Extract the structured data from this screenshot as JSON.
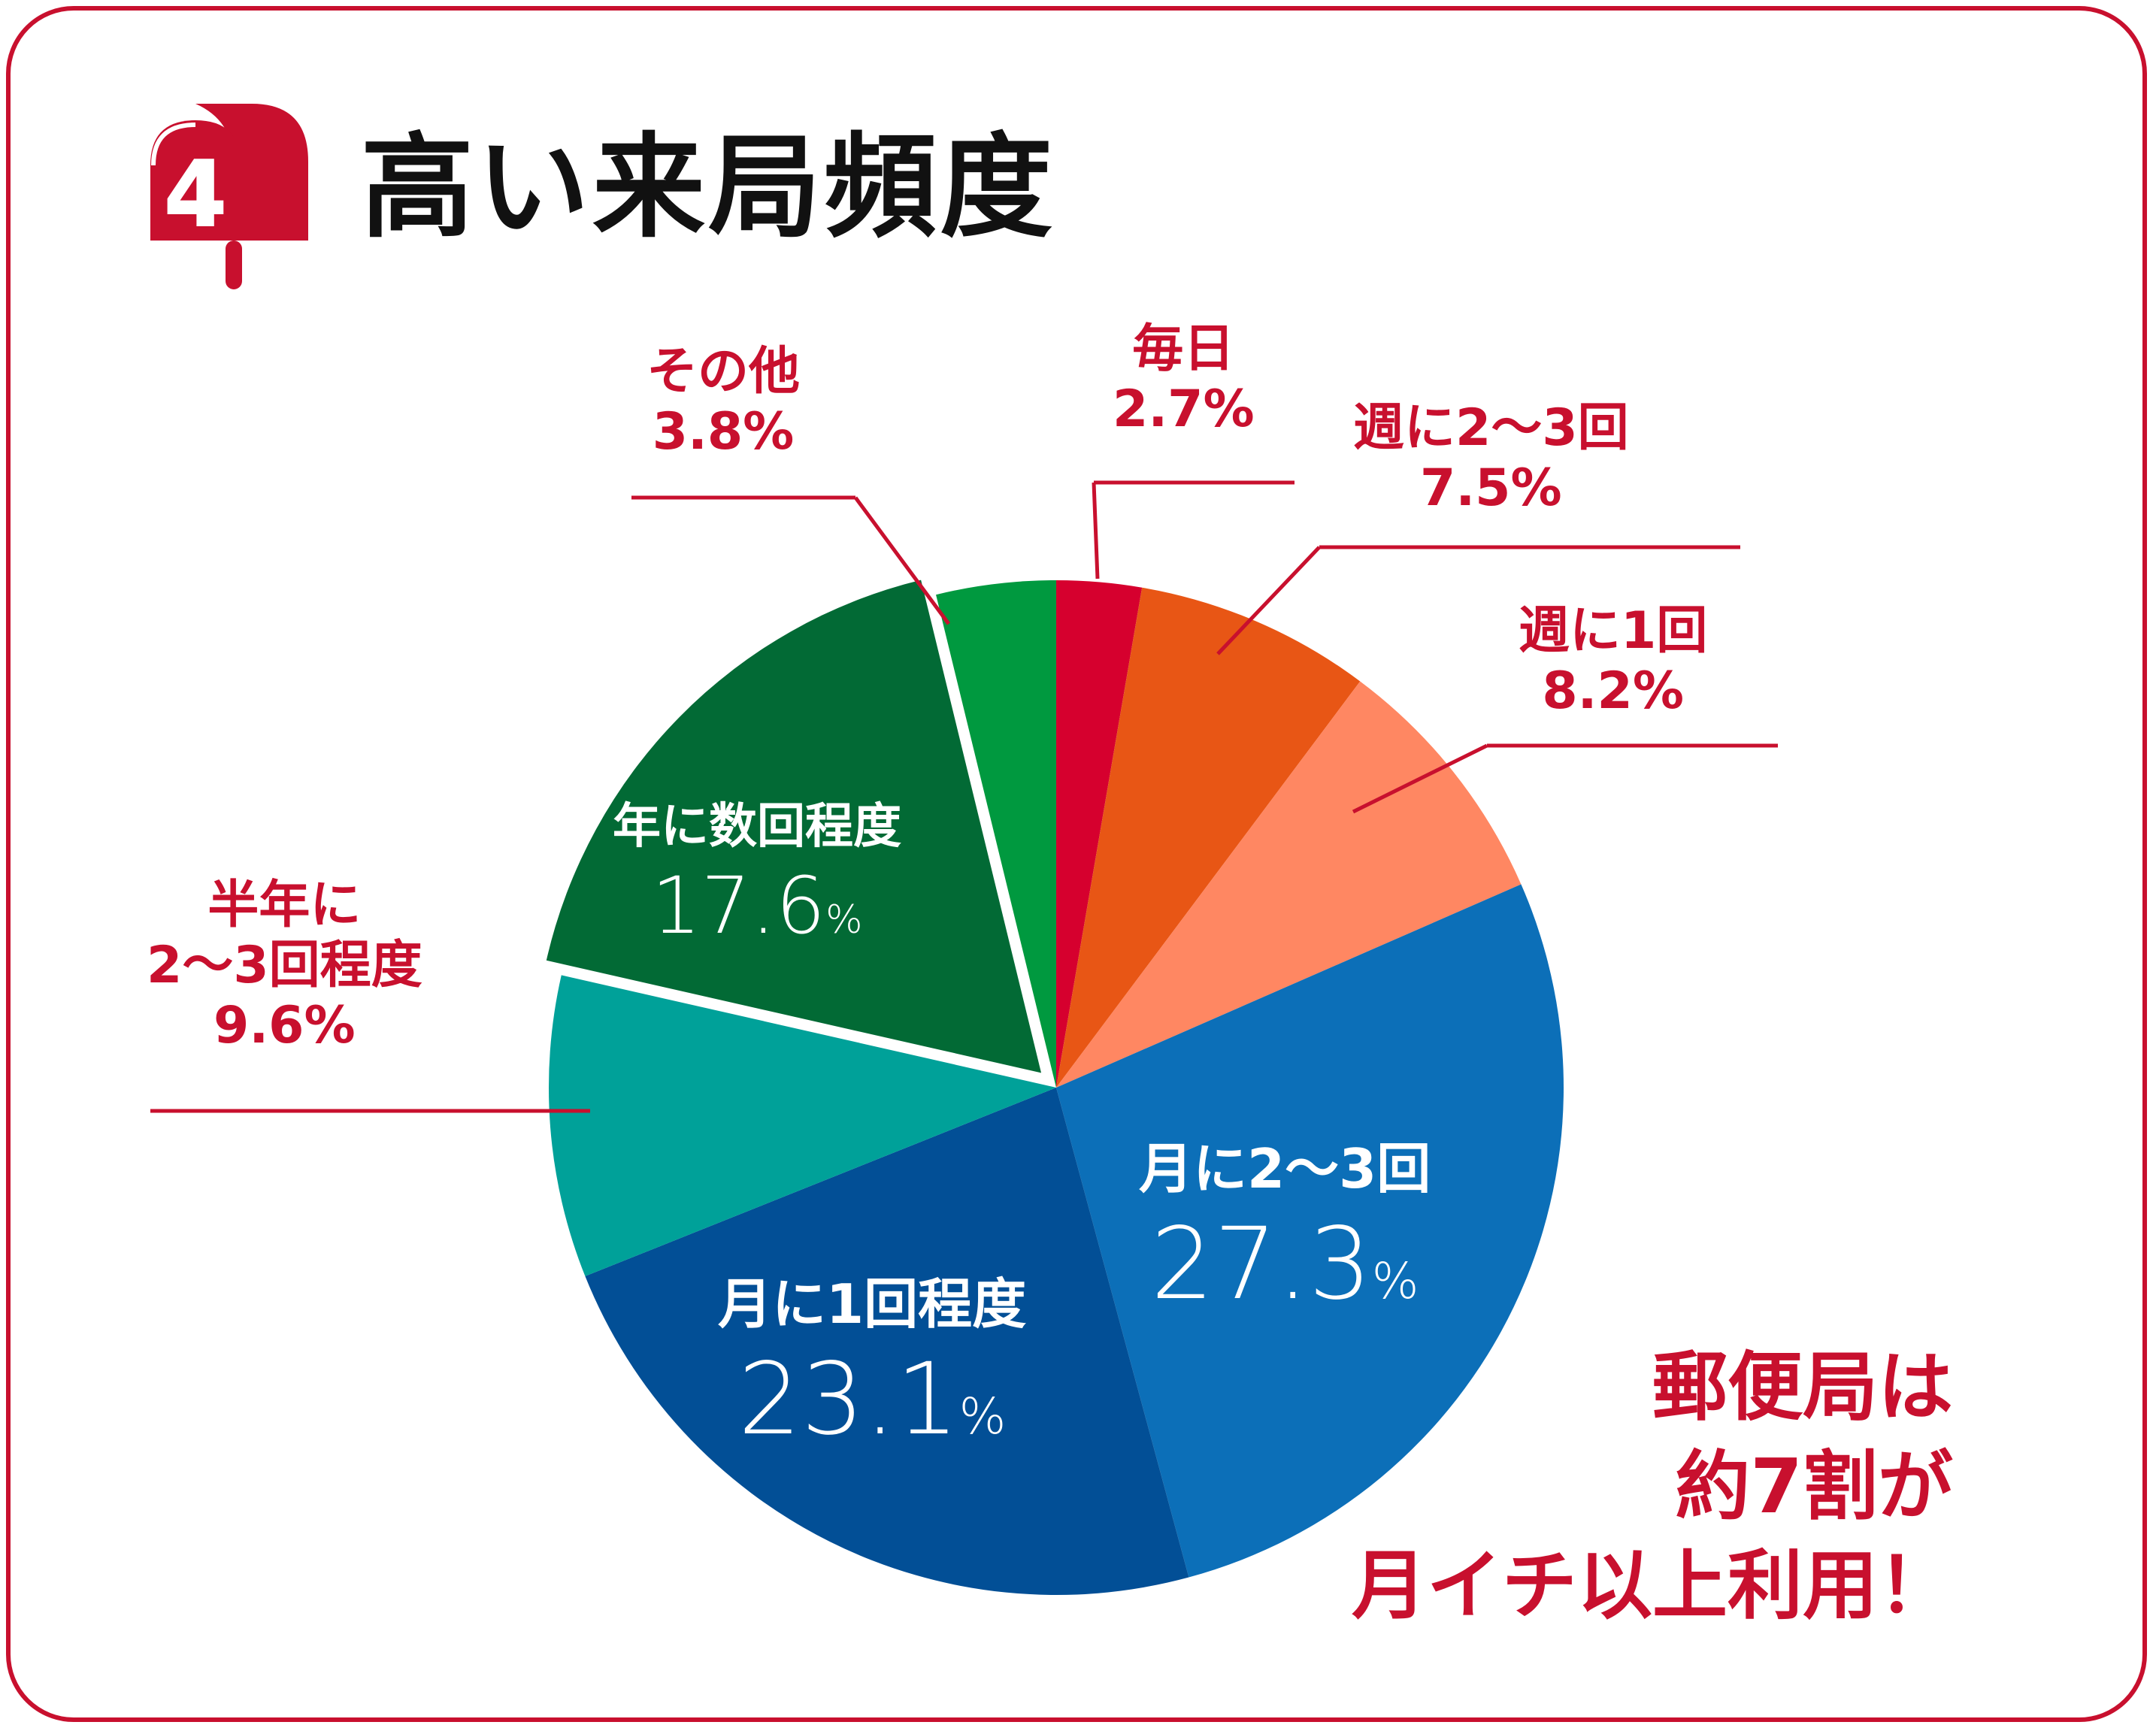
{
  "title": "高い来局頻度",
  "badge_number": "4",
  "colors": {
    "frame": "#c8102e",
    "label_text": "#c8102e"
  },
  "chart_data": {
    "type": "pie",
    "title": "",
    "unit": "%",
    "start_angle_deg": 0,
    "direction": "clockwise",
    "exploded": "年に数回程度",
    "slices": [
      {
        "label": "毎日",
        "value": 2.7,
        "color": "#d6002e",
        "label_placement": "outside"
      },
      {
        "label": "週に2〜3回",
        "value": 7.5,
        "color": "#e85615",
        "label_placement": "outside"
      },
      {
        "label": "週に1回",
        "value": 8.2,
        "color": "#ff8762",
        "label_placement": "outside"
      },
      {
        "label": "月に2〜3回",
        "value": 27.3,
        "color": "#0c6fb8",
        "label_placement": "inside"
      },
      {
        "label": "月に1回程度",
        "value": 23.1,
        "color": "#024f96",
        "label_placement": "inside"
      },
      {
        "label": "半年に2〜3回程度",
        "value": 9.6,
        "color": "#00a199",
        "label_placement": "outside"
      },
      {
        "label": "年に数回程度",
        "value": 17.6,
        "color": "#026a35",
        "label_placement": "inside"
      },
      {
        "label": "その他",
        "value": 3.8,
        "color": "#00993f",
        "label_placement": "outside"
      }
    ]
  },
  "labels": {
    "daily": {
      "line1": "毎日",
      "pct": "2.7%"
    },
    "week23": {
      "line1": "週に2〜3回",
      "pct": "7.5%"
    },
    "week1": {
      "line1": "週に1回",
      "pct": "8.2%"
    },
    "month23": {
      "line1": "月に2〜3回",
      "num": "27.3",
      "unit": "%"
    },
    "month1": {
      "line1": "月に1回程度",
      "num": "23.1",
      "unit": "%"
    },
    "halfyear": {
      "line1": "半年に",
      "line2": "2〜3回程度",
      "pct": "9.6%"
    },
    "year": {
      "line1": "年に数回程度",
      "num": "17.6",
      "unit": "%"
    },
    "other": {
      "line1": "その他",
      "pct": "3.8%"
    }
  },
  "callout": {
    "line1": "郵便局は",
    "line2": "約7割が",
    "line3": "月イチ以上利用！"
  }
}
